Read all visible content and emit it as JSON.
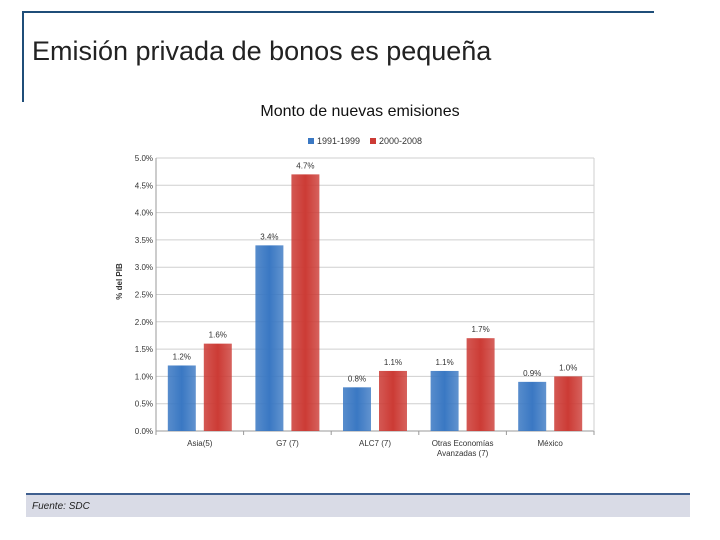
{
  "slide": {
    "title": "Emisión privada de bonos es pequeña",
    "source": "Fuente: SDC"
  },
  "chart_data": {
    "type": "bar",
    "title": "Monto de nuevas emisiones",
    "xlabel": "",
    "ylabel": "% del PIB",
    "categories": [
      "Asia(5)",
      "G7 (7)",
      "ALC7 (7)",
      "Otras Economías\nAvanzadas (7)",
      "México"
    ],
    "series": [
      {
        "name": "1991-1999",
        "values": [
          1.2,
          3.4,
          0.8,
          1.1,
          0.9
        ],
        "labels": [
          "1.2%",
          "3.4%",
          "0.8%",
          "1.1%",
          "0.9%"
        ],
        "color": "#3a78c3"
      },
      {
        "name": "2000-2008",
        "values": [
          1.6,
          4.7,
          1.1,
          1.7,
          1.0
        ],
        "labels": [
          "1.6%",
          "4.7%",
          "1.1%",
          "1.7%",
          "1.0%"
        ],
        "color": "#cc3b35"
      }
    ],
    "ylim": [
      0,
      5
    ],
    "yticks": [
      0,
      0.5,
      1.0,
      1.5,
      2.0,
      2.5,
      3.0,
      3.5,
      4.0,
      4.5,
      5.0
    ],
    "ytick_labels": [
      "0.0%",
      "0.5%",
      "1.0%",
      "1.5%",
      "2.0%",
      "2.5%",
      "3.0%",
      "3.5%",
      "4.0%",
      "4.5%",
      "5.0%"
    ],
    "grid": true,
    "legend_position": "top"
  }
}
